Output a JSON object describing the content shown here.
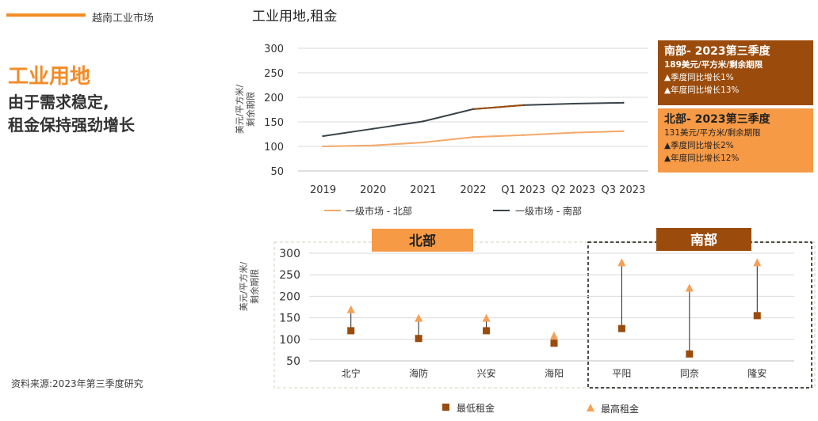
{
  "header": {
    "title": "越南工业市场"
  },
  "left": {
    "section_title": "工业用地",
    "headline_line1": "由于需求稳定,",
    "headline_line2": "租金保持强劲增长",
    "source": "资料来源:2023年第三季度研究"
  },
  "colors": {
    "accent": "#f28c28",
    "south_dark": "#9b4c0c",
    "north_light": "#f79a46",
    "line_south": "#3a4448",
    "line_north": "#f4a867",
    "marker_min": "#9b4c0c",
    "marker_max": "#f5a055"
  },
  "callouts": {
    "south": {
      "title": "南部- 2023第三季度",
      "rent": "189美元/平方米/剩余期限",
      "qoq": "▲季度同比增长1%",
      "yoy": "▲年度同比增长13%"
    },
    "north": {
      "title": "北部- 2023第三季度",
      "rent": "131美元/平方米/剩余期限",
      "qoq": "▲季度同比增长2%",
      "yoy": "▲年度同比增长12%"
    }
  },
  "chart_data": [
    {
      "type": "line",
      "title": "工业用地,租金",
      "ylabel": "美元/平方米/剩余期限",
      "ylim": [
        50,
        300
      ],
      "yticks": [
        50,
        100,
        150,
        200,
        250,
        300
      ],
      "grid": true,
      "legend_position": "bottom",
      "x": [
        "2019",
        "2020",
        "2021",
        "2022",
        "Q1 2023",
        "Q2 2023",
        "Q3 2023"
      ],
      "series": [
        {
          "name": "一级市场 - 北部",
          "values": [
            100,
            102,
            108,
            119,
            123,
            128,
            131
          ]
        },
        {
          "name": "一级市场 - 南部",
          "values": [
            121,
            136,
            151,
            176,
            184,
            187,
            189
          ]
        }
      ]
    },
    {
      "type": "scatter",
      "ylabel": "美元/平方米/剩余期限",
      "ylim": [
        50,
        300
      ],
      "yticks": [
        50,
        100,
        150,
        200,
        250,
        300
      ],
      "grid": true,
      "legend_position": "bottom",
      "groups": [
        {
          "label": "北部",
          "categories": [
            "北宁",
            "海防",
            "兴安",
            "海阳"
          ]
        },
        {
          "label": "南部",
          "categories": [
            "平阳",
            "同奈",
            "隆安"
          ]
        }
      ],
      "categories": [
        "北宁",
        "海防",
        "兴安",
        "海阳",
        "平阳",
        "同奈",
        "隆安"
      ],
      "series": [
        {
          "name": "最低租金",
          "values": [
            120,
            102,
            120,
            91,
            125,
            66,
            155
          ]
        },
        {
          "name": "最高租金",
          "values": [
            170,
            150,
            150,
            109,
            279,
            220,
            279
          ]
        }
      ]
    }
  ]
}
